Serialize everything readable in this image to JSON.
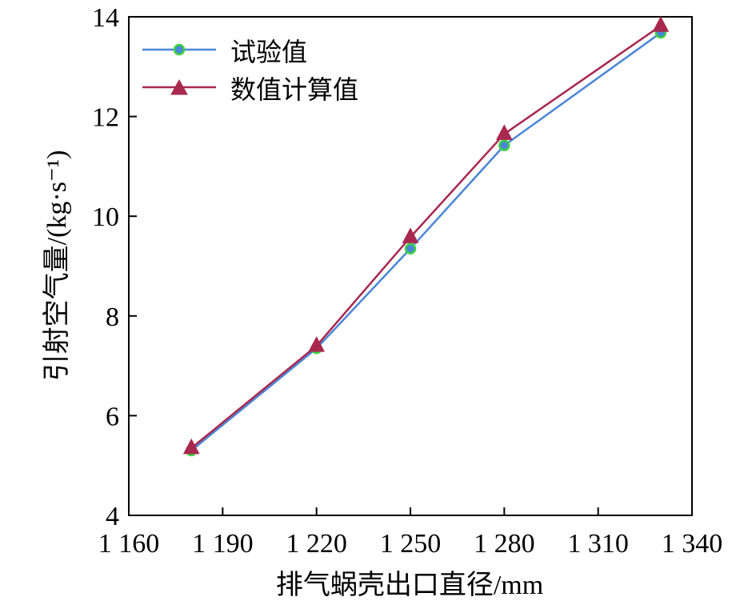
{
  "chart_data": {
    "type": "line",
    "title": "",
    "xlabel": "排气蜗壳出口直径/mm",
    "ylabel": "引射空气量/(kg·s⁻¹)",
    "xlim": [
      1160,
      1340
    ],
    "ylim": [
      4,
      14
    ],
    "x_ticks": [
      1160,
      1190,
      1220,
      1250,
      1280,
      1310,
      1340
    ],
    "x_tick_labels": [
      "1 160",
      "1 190",
      "1 220",
      "1 250",
      "1 280",
      "1 310",
      "1 340"
    ],
    "y_ticks": [
      4,
      6,
      8,
      10,
      12,
      14
    ],
    "y_tick_labels": [
      "4",
      "6",
      "8",
      "10",
      "12",
      "14"
    ],
    "grid": false,
    "legend_position": "top-left",
    "series": [
      {
        "name": "试验值",
        "color": "#4a86d8",
        "marker_color": "#3fd13f",
        "marker": "circle",
        "x": [
          1180,
          1220,
          1250,
          1280,
          1330
        ],
        "values": [
          5.3,
          7.35,
          9.35,
          11.42,
          13.68
        ]
      },
      {
        "name": "数值计算值",
        "color": "#a8284e",
        "marker_color": "#a8284e",
        "marker": "triangle",
        "x": [
          1180,
          1220,
          1250,
          1280,
          1330
        ],
        "values": [
          5.35,
          7.4,
          9.58,
          11.65,
          13.82
        ]
      }
    ]
  }
}
